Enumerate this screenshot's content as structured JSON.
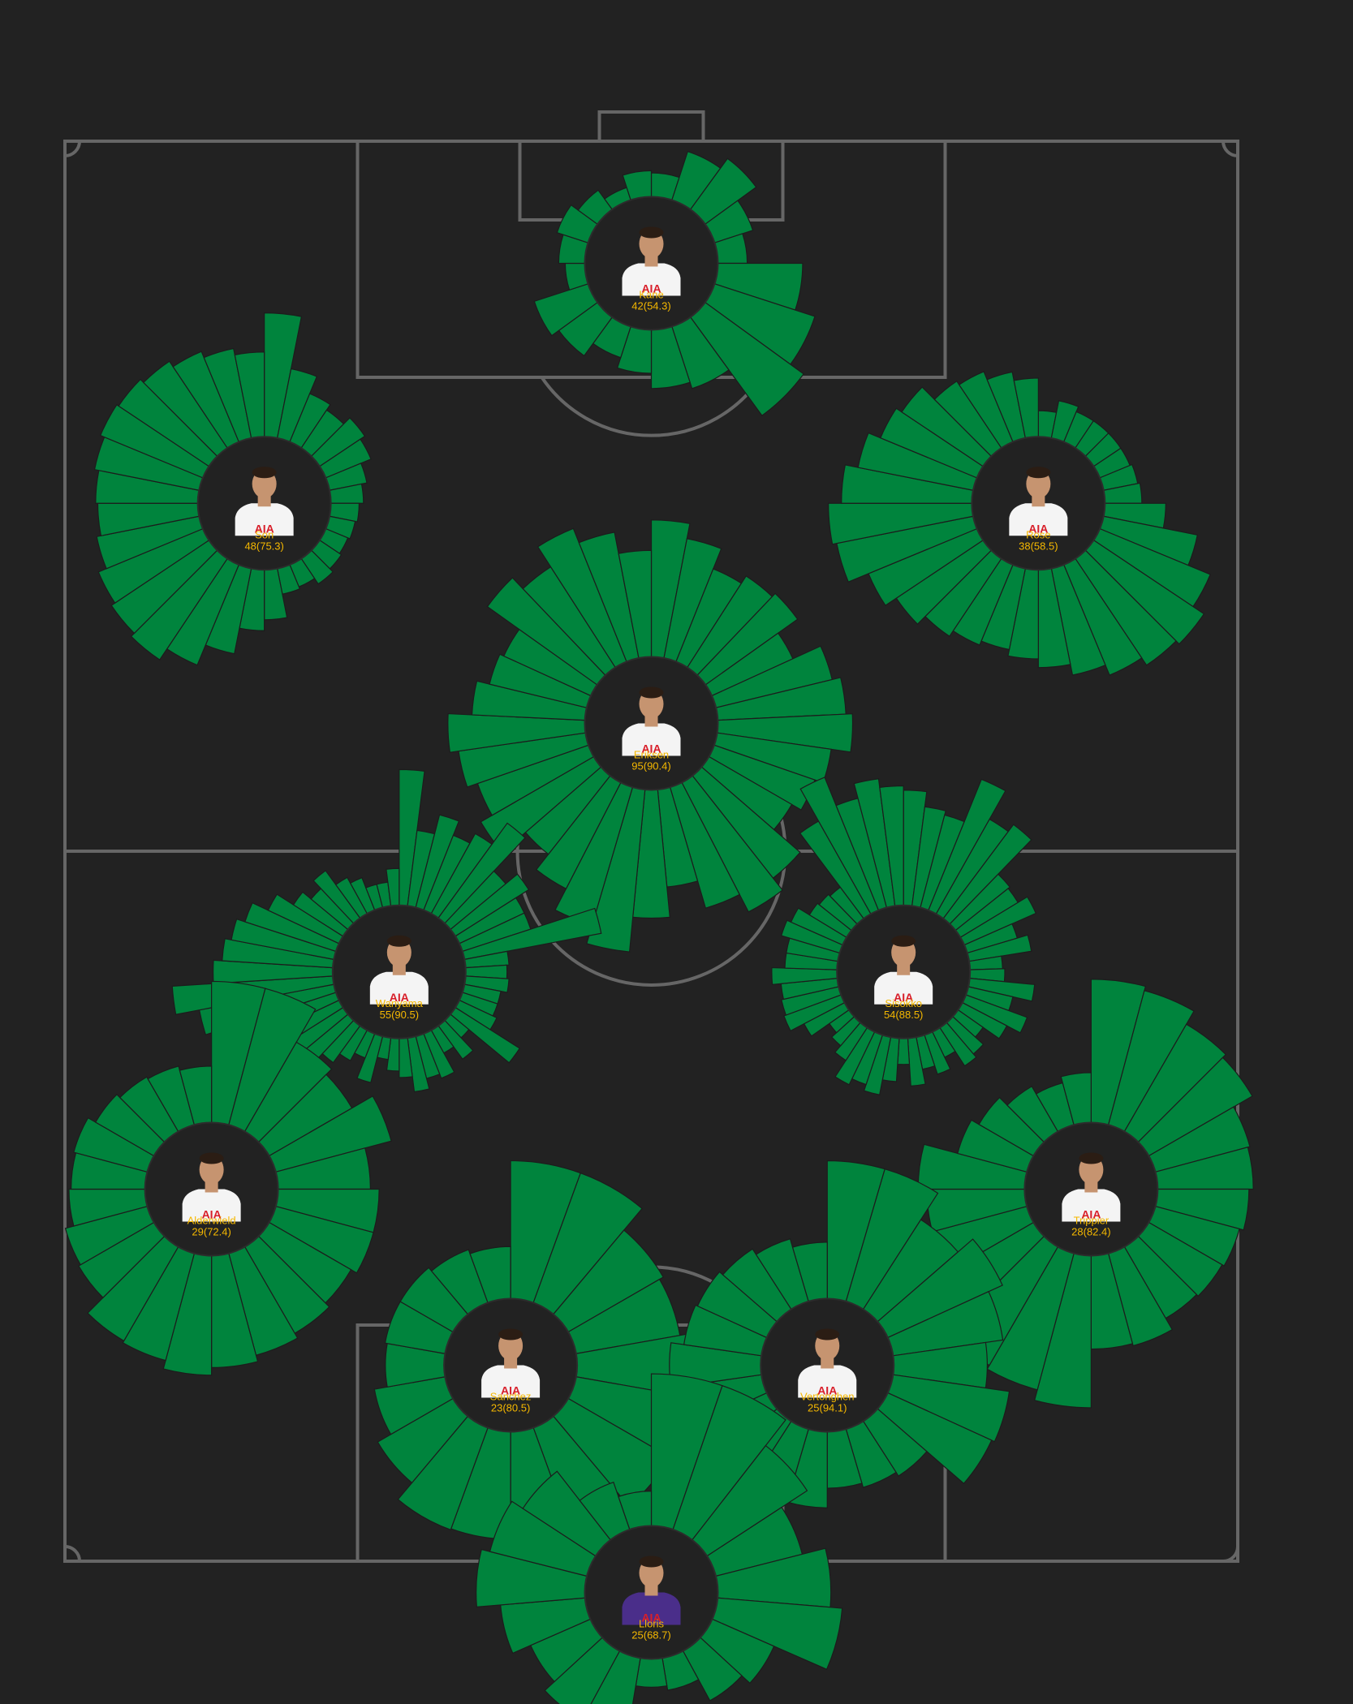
{
  "colors": {
    "background": "#222222",
    "pitch_lines": "#666666",
    "bar": "#00843D",
    "label": "#F5B800"
  },
  "chart_data": {
    "type": "radial-bar",
    "players": [
      {
        "name": "Kane",
        "count": 42,
        "pct": 54.3,
        "label": "42(54.3)",
        "pos": [
          0.5,
          0.914
        ],
        "bars": [
          22,
          47,
          58,
          37,
          27,
          78,
          97,
          112,
          60,
          54,
          40,
          30,
          44,
          52,
          18,
          24,
          30,
          22,
          12,
          24
        ]
      },
      {
        "name": "Son",
        "count": 48,
        "pct": 75.3,
        "label": "48(75.3)",
        "pos": [
          0.17,
          0.745
        ],
        "bars": [
          114,
          65,
          48,
          42,
          50,
          45,
          35,
          30,
          26,
          24,
          22,
          24,
          28,
          22,
          24,
          46,
          56,
          80,
          100,
          112,
          108,
          104,
          96,
          92,
          94,
          98,
          102,
          100,
          96,
          90,
          84,
          78
        ]
      },
      {
        "name": "Rose",
        "count": 38,
        "pct": 58.5,
        "label": "38(58.5)",
        "pos": [
          0.83,
          0.745
        ],
        "bars": [
          24,
          35,
          30,
          30,
          30,
          30,
          32,
          34,
          56,
          88,
          110,
          122,
          118,
          110,
          100,
          90,
          82,
          76,
          80,
          86,
          96,
          108,
          128,
          132,
          120,
          108,
          96,
          90,
          74,
          70,
          62,
          54
        ]
      },
      {
        "name": "Eriksen",
        "count": 95,
        "pct": 90.4,
        "label": "95(90.4)",
        "pos": [
          0.5,
          0.59
        ],
        "bars": [
          126,
          112,
          92,
          100,
          104,
          82,
          110,
          118,
          124,
          106,
          98,
          88,
          120,
          134,
          116,
          90,
          118,
          150,
          132,
          110,
          92,
          120,
          108,
          118,
          126,
          104,
          92,
          88,
          124,
          110,
          132,
          118,
          98
        ]
      },
      {
        "name": "Wanyama",
        "count": 55,
        "pct": 90.5,
        "label": "55(90.5)",
        "pos": [
          0.285,
          0.415
        ],
        "bars": [
          125,
          70,
          88,
          74,
          84,
          108,
          66,
          80,
          66,
          66,
          128,
          40,
          38,
          40,
          34,
          34,
          38,
          70,
          22,
          38,
          24,
          44,
          40,
          50,
          36,
          30,
          20,
          44,
          24,
          32,
          42,
          58,
          78,
          92,
          110,
          126,
          148,
          110,
          102,
          96,
          88,
          72,
          54,
          44,
          54,
          38,
          32,
          22,
          22,
          34
        ]
      },
      {
        "name": "Sisokko",
        "count": 54,
        "pct": 88.5,
        "label": "54(88.5)",
        "pos": [
          0.715,
          0.415
        ],
        "bars": [
          106,
          92,
          88,
          130,
          100,
          108,
          64,
          62,
          72,
          48,
          58,
          30,
          32,
          60,
          42,
          60,
          46,
          28,
          38,
          42,
          26,
          38,
          30,
          44,
          24,
          40,
          54,
          48,
          54,
          36,
          28,
          22,
          42,
          56,
          54,
          52,
          60,
          48,
          48,
          56,
          52,
          40,
          38,
          36,
          98,
          132,
          104,
          118,
          110
        ]
      },
      {
        "name": "Alderwield",
        "count": 29,
        "pct": 72.4,
        "label": "29(72.4)",
        "pos": [
          0.125,
          0.262
        ],
        "bars": [
          130,
          130,
          95,
          88,
          110,
          85,
          93,
          93,
          87,
          92,
          97,
          103,
          110,
          102,
          100,
          80,
          78,
          70,
          68,
          70,
          62,
          58,
          56,
          52
        ]
      },
      {
        "name": "Trippier",
        "count": 28,
        "pct": 82.4,
        "label": "28(82.4)",
        "pos": [
          0.875,
          0.262
        ],
        "bars": [
          132,
          128,
          114,
          110,
          90,
          88,
          84,
          80,
          78,
          76,
          88,
          86,
          140,
          130,
          126,
          114,
          110,
          90,
          98,
          66,
          58,
          48,
          40,
          46
        ]
      },
      {
        "name": "Sanchez",
        "count": 23,
        "pct": 80.5,
        "label": "23(80.5)",
        "pos": [
          0.38,
          0.138
        ],
        "bars": [
          127,
          127,
          101,
          97,
          104,
          127,
          108,
          90,
          78,
          99,
          100,
          80,
          66,
          54,
          56,
          56,
          52,
          48
        ]
      },
      {
        "name": "Vertonghen",
        "count": 25,
        "pct": 94.1,
        "label": "25(94.1)",
        "pos": [
          0.65,
          0.138
        ],
        "bars": [
          127,
          127,
          98,
          116,
          102,
          86,
          108,
          105,
          60,
          56,
          52,
          70,
          44,
          88,
          90,
          92,
          84,
          72,
          70,
          66,
          60,
          52
        ]
      },
      {
        "name": "Lloris",
        "count": 25,
        "pct": 68.7,
        "label": "25(68.7)",
        "pos": [
          0.5,
          -0.022
        ],
        "bars": [
          140,
          140,
          110,
          82,
          104,
          115,
          62,
          52,
          30,
          26,
          66,
          72,
          60,
          78,
          100,
          92,
          80,
          46,
          32
        ]
      }
    ]
  }
}
